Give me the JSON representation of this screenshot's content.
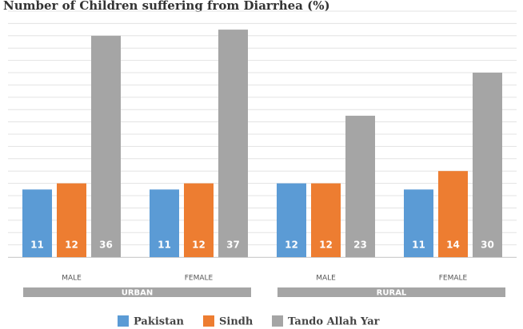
{
  "chart_data": {
    "type": "bar",
    "title": "Number of Children suffering from Diarrhea (%)",
    "groups": [
      "URBAN",
      "RURAL"
    ],
    "categories": [
      "MALE",
      "FEMALE",
      "MALE",
      "FEMALE"
    ],
    "series": [
      {
        "name": "Pakistan",
        "color": "#5b9bd5",
        "values": [
          11,
          11,
          12,
          11
        ]
      },
      {
        "name": "Sindh",
        "color": "#ed7d31",
        "values": [
          12,
          12,
          12,
          14
        ]
      },
      {
        "name": "Tando Allah Yar",
        "color": "#a5a5a5",
        "values": [
          36,
          37,
          23,
          30
        ]
      }
    ],
    "ylim": [
      0,
      40
    ],
    "yticks": [
      0,
      2,
      4,
      6,
      8,
      10,
      12,
      14,
      16,
      18,
      20,
      22,
      24,
      26,
      28,
      30,
      32,
      34,
      36,
      38,
      40
    ],
    "grid": true
  }
}
